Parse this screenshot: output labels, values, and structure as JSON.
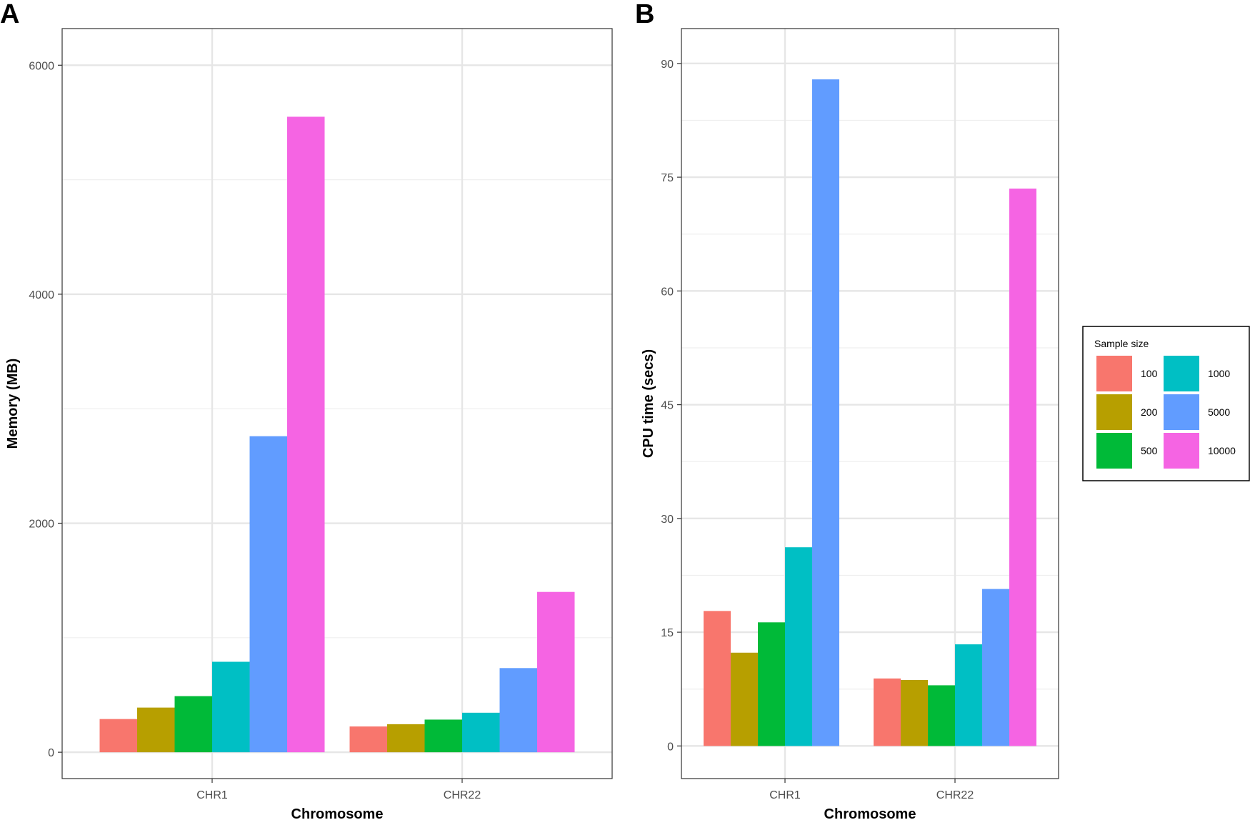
{
  "chart_data": [
    {
      "type": "bar",
      "panel_label": "A",
      "title": "",
      "xlabel": "Chromosome",
      "ylabel": "Memory (MB)",
      "categories": [
        "CHR1",
        "CHR22"
      ],
      "ylim": [
        -230,
        6320
      ],
      "yticks": [
        0,
        2000,
        4000,
        6000
      ],
      "yticks_labels": [
        "0",
        "2000",
        "4000",
        "6000"
      ],
      "grid": true,
      "series": [
        {
          "name": "100",
          "values": [
            290,
            225
          ]
        },
        {
          "name": "200",
          "values": [
            390,
            245
          ]
        },
        {
          "name": "500",
          "values": [
            490,
            285
          ]
        },
        {
          "name": "1000",
          "values": [
            790,
            345
          ]
        },
        {
          "name": "5000",
          "values": [
            2760,
            735
          ]
        },
        {
          "name": "10000",
          "values": [
            5550,
            1400
          ]
        }
      ]
    },
    {
      "type": "bar",
      "panel_label": "B",
      "title": "",
      "xlabel": "Chromosome",
      "ylabel": "CPU time (secs)",
      "categories": [
        "CHR1",
        "CHR22"
      ],
      "ylim": [
        -4.3,
        94.6
      ],
      "yticks": [
        0,
        15,
        30,
        45,
        60,
        75,
        90
      ],
      "yticks_labels": [
        "0",
        "15",
        "30",
        "45",
        "60",
        "75",
        "90"
      ],
      "grid": true,
      "series": [
        {
          "name": "100",
          "values": [
            17.8,
            8.9
          ]
        },
        {
          "name": "200",
          "values": [
            12.3,
            8.7
          ]
        },
        {
          "name": "500",
          "values": [
            16.3,
            8.0
          ]
        },
        {
          "name": "1000",
          "values": [
            26.2,
            13.4
          ]
        },
        {
          "name": "5000",
          "values": [
            87.9,
            20.7
          ]
        },
        {
          "name": "10000",
          "values": [
            null,
            73.5
          ]
        }
      ]
    }
  ],
  "legend": {
    "title": "Sample size",
    "placement": "right",
    "items": [
      {
        "label": "100",
        "color": "#F8766D"
      },
      {
        "label": "200",
        "color": "#B79F00"
      },
      {
        "label": "500",
        "color": "#00BA38"
      },
      {
        "label": "1000",
        "color": "#00BFC4"
      },
      {
        "label": "5000",
        "color": "#619CFF"
      },
      {
        "label": "10000",
        "color": "#F564E3"
      }
    ]
  }
}
